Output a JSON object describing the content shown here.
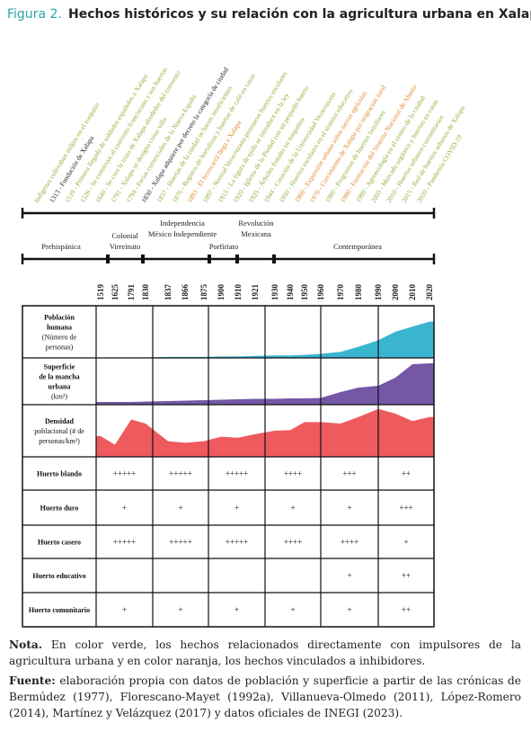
{
  "title": {
    "label": "Figura 2.",
    "text": "Hechos históricos y su relación con la agricultura urbana en Xalapa"
  },
  "events": [
    {
      "text": "Indígenas cultivaban milpas en el traspatio",
      "color": "#8db33a"
    },
    {
      "text": "1313 - Fundación de Xalapa",
      "color": "#222222"
    },
    {
      "text": "1519 - Primera llegada de soldados españoles a Xalapa",
      "color": "#8db33a"
    },
    {
      "text": "1526 - Se construye el convento franciscano y sus huertas",
      "color": "#8db33a"
    },
    {
      "text": "1640 - Se crea la traza de Xalapa alrededor del convento",
      "color": "#8db33a"
    },
    {
      "text": "1791 - Xalapa se designa como villa",
      "color": "#8db33a"
    },
    {
      "text": "1794 - Ferias comerciales de la Nueva España",
      "color": "#8db33a"
    },
    {
      "text": "1830 - Xalapa adquiere por decreto la categoría de ciudad",
      "color": "#222222"
    },
    {
      "text": "1837 - Huertas de la ciudad se hacen insuficientes",
      "color": "#8db33a"
    },
    {
      "text": "1876 - Registro de hortalizas y huertas de café en casas",
      "color": "#8db33a"
    },
    {
      "text": "1893 - El ferrocarril llega a Xalapa",
      "color": "#e08a2c"
    },
    {
      "text": "1897 - Normal Veracruzana promueve huertos escolares",
      "color": "#8db33a"
    },
    {
      "text": "1915 - La figura de ejido se introduce en la ley",
      "color": "#8db33a"
    },
    {
      "text": "1920 - Iglesia de la Piedad con un pequeño huerto",
      "color": "#8db33a"
    },
    {
      "text": "1925 - Árboles frutales en traspatios",
      "color": "#8db33a"
    },
    {
      "text": "1944 - Creación de la Universidad Veracruzana",
      "color": "#8db33a"
    },
    {
      "text": "1950 - Huertos escolares en el sistema educativo",
      "color": "#8db33a"
    },
    {
      "text": "1960 - Expansión urbana sobre tierras agrícolas",
      "color": "#e08a2c"
    },
    {
      "text": "1970 - Crecimiento de Xalapa por migración rural",
      "color": "#e08a2c"
    },
    {
      "text": "1980 - Programas de huertos familiares",
      "color": "#8db33a"
    },
    {
      "text": "1990 - Formación del Sistema Nacional de Abasto",
      "color": "#e08a2c"
    },
    {
      "text": "1999 - Agroecología en el centro de la ciudad",
      "color": "#8db33a"
    },
    {
      "text": "2005 - Mercado orgánico y huertos en casas",
      "color": "#8db33a"
    },
    {
      "text": "2010 - Huertos urbanos comunitarios",
      "color": "#8db33a"
    },
    {
      "text": "2015 - Red de huertos urbanos de Xalapa",
      "color": "#8db33a"
    },
    {
      "text": "2020 - Pandemia COVID-19",
      "color": "#8db33a"
    }
  ],
  "periods": [
    {
      "lines": [
        "Prehispánica"
      ]
    },
    {
      "lines": [
        "Colonial",
        "Virreinato"
      ]
    },
    {
      "lines": [
        "Independencia",
        "México Independiente"
      ]
    },
    {
      "lines": [
        "Porfiriato"
      ]
    },
    {
      "lines": [
        "Revolución",
        "Mexicana"
      ]
    },
    {
      "lines": [
        "Contemporánea"
      ]
    }
  ],
  "years": [
    "1519",
    "1625",
    "1791",
    "1830",
    "1837",
    "1866",
    "1875",
    "1900",
    "1910",
    "1921",
    "1930",
    "1940",
    "1950",
    "1960",
    "1970",
    "1980",
    "1990",
    "2000",
    "2010",
    "2020"
  ],
  "table": {
    "chart_rows": [
      {
        "title": [
          "Población",
          "humana"
        ],
        "subtitle": [
          "(Número de",
          "personas)"
        ]
      },
      {
        "title": [
          "Superficie",
          "de la mancha",
          "urbana"
        ],
        "subtitle": [
          "(km²)"
        ]
      },
      {
        "title": [
          "Densidad"
        ],
        "subtitle": [
          "poblacional (# de",
          "personas/km²)"
        ]
      }
    ],
    "rows": [
      {
        "label": "Huerto blando",
        "cells": [
          "+++++",
          "+++++",
          "+++++",
          "++++",
          "+++",
          "++"
        ]
      },
      {
        "label": "Huerto duro",
        "cells": [
          "+",
          "+",
          "+",
          "+",
          "+",
          "+++"
        ]
      },
      {
        "label": "Huerto casero",
        "cells": [
          "+++++",
          "+++++",
          "+++++",
          "++++",
          "++++",
          "+"
        ]
      },
      {
        "label": "Huerto educativo",
        "cells": [
          null,
          null,
          null,
          null,
          "+",
          "++"
        ]
      },
      {
        "label": "Huerto comunitario",
        "cells": [
          "+",
          "+",
          "+",
          "+",
          "+",
          "++"
        ]
      }
    ]
  },
  "chart_data": [
    {
      "type": "area",
      "color": "#3ab5d0",
      "values": [
        1,
        1,
        1,
        1,
        2,
        2,
        2,
        3,
        3,
        4,
        5,
        5,
        6,
        8,
        12,
        22,
        35,
        52,
        62,
        72
      ]
    },
    {
      "type": "area",
      "color": "#7557a8",
      "values": [
        6,
        6,
        6,
        7,
        8,
        9,
        10,
        11,
        12,
        13,
        13,
        14,
        14,
        15,
        28,
        38,
        42,
        60,
        90,
        92
      ]
    },
    {
      "type": "area",
      "color": "#ee5a5e",
      "values": [
        41,
        24,
        74,
        66,
        31,
        28,
        31,
        40,
        38,
        45,
        52,
        53,
        69,
        69,
        66,
        79,
        95,
        86,
        71,
        79
      ]
    }
  ],
  "notes": {
    "nota_label": "Nota.",
    "nota": "En color verde, los hechos relacionados directamente con impulsores de la agricultura urbana y en color naranja, los hechos vinculados a inhibidores.",
    "fuente_label": "Fuente:",
    "fuente": "elaboración propia con datos de población y superficie a partir de las crónicas de Bermúdez (1977), Florescano-Mayet (1992a), Villanueva-Olmedo (2011), López-Romero (2014), Martínez y Velázquez (2017) y datos oficiales de INEGI (2023)."
  }
}
